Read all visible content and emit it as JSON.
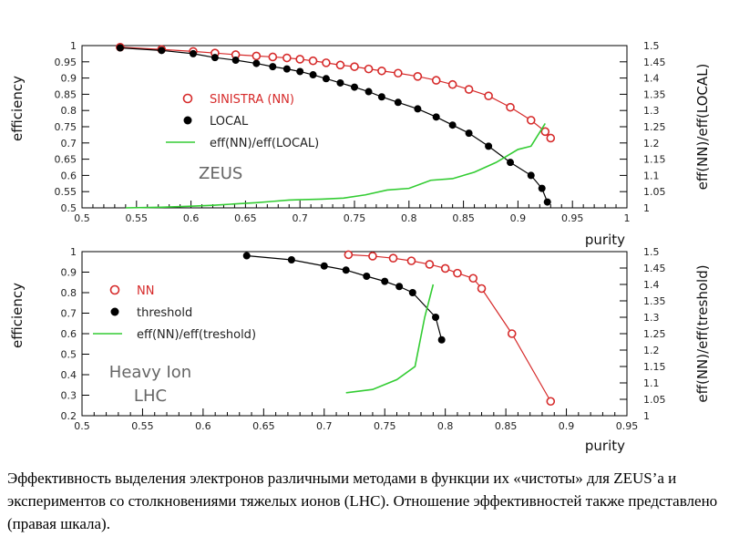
{
  "caption": "Эффективность выделения электронов различными методами в функции их «чистоты» для ZEUS’а и экспериментов со столкновениями тяжелых ионов (LHC). Отношение эффективностей также представлено (правая шкала).",
  "colors": {
    "red": "#d62a2a",
    "black": "#000000",
    "green": "#33cc33"
  },
  "chart_data": [
    {
      "type": "scatter",
      "annotation": "ZEUS",
      "xlabel": "purity",
      "ylabel": "efficiency",
      "y2label": "eff(NN)/eff(LOCAL)",
      "xlim": [
        0.5,
        1.0
      ],
      "ylim": [
        0.5,
        1.0
      ],
      "y2lim": [
        1.0,
        1.5
      ],
      "xticks": [
        "0.5",
        "0.55",
        "0.6",
        "0.65",
        "0.7",
        "0.75",
        "0.8",
        "0.85",
        "0.9",
        "0.95",
        "1"
      ],
      "yticks": [
        "0.5",
        "0.55",
        "0.6",
        "0.65",
        "0.7",
        "0.75",
        "0.8",
        "0.85",
        "0.9",
        "0.95",
        "1"
      ],
      "y2ticks": [
        "1",
        "1.05",
        "1.1",
        "1.15",
        "1.2",
        "1.25",
        "1.3",
        "1.35",
        "1.4",
        "1.45",
        "1.5"
      ],
      "legend_position": "center-left",
      "series": [
        {
          "name": "SINISTRA (NN)",
          "marker": "open-circle",
          "color": "red",
          "axis": "left",
          "x": [
            0.535,
            0.573,
            0.602,
            0.622,
            0.641,
            0.66,
            0.675,
            0.688,
            0.7,
            0.712,
            0.724,
            0.737,
            0.75,
            0.763,
            0.775,
            0.79,
            0.808,
            0.825,
            0.84,
            0.855,
            0.873,
            0.893,
            0.912,
            0.925,
            0.93
          ],
          "y": [
            0.995,
            0.988,
            0.982,
            0.977,
            0.972,
            0.968,
            0.965,
            0.962,
            0.958,
            0.953,
            0.947,
            0.94,
            0.935,
            0.928,
            0.922,
            0.915,
            0.905,
            0.893,
            0.88,
            0.865,
            0.845,
            0.81,
            0.77,
            0.735,
            0.715
          ]
        },
        {
          "name": "LOCAL",
          "marker": "filled-circle",
          "color": "black",
          "axis": "left",
          "x": [
            0.535,
            0.573,
            0.602,
            0.622,
            0.641,
            0.66,
            0.675,
            0.688,
            0.7,
            0.712,
            0.724,
            0.737,
            0.75,
            0.763,
            0.775,
            0.79,
            0.808,
            0.825,
            0.84,
            0.855,
            0.873,
            0.893,
            0.912,
            0.922,
            0.927
          ],
          "y": [
            0.993,
            0.985,
            0.975,
            0.963,
            0.955,
            0.945,
            0.935,
            0.928,
            0.92,
            0.91,
            0.898,
            0.885,
            0.872,
            0.858,
            0.842,
            0.825,
            0.805,
            0.78,
            0.755,
            0.73,
            0.69,
            0.64,
            0.6,
            0.56,
            0.518
          ]
        },
        {
          "name": "eff(NN)/eff(LOCAL)",
          "marker": "line",
          "color": "green",
          "axis": "right",
          "x": [
            0.54,
            0.573,
            0.6,
            0.62,
            0.64,
            0.66,
            0.675,
            0.69,
            0.7,
            0.72,
            0.74,
            0.76,
            0.78,
            0.8,
            0.82,
            0.84,
            0.86,
            0.88,
            0.9,
            0.912,
            0.925
          ],
          "y": [
            1.0,
            1.002,
            1.005,
            1.008,
            1.012,
            1.016,
            1.02,
            1.024,
            1.025,
            1.027,
            1.03,
            1.04,
            1.055,
            1.06,
            1.085,
            1.09,
            1.11,
            1.14,
            1.18,
            1.19,
            1.26
          ]
        }
      ]
    },
    {
      "type": "scatter",
      "annotation": [
        "Heavy Ion",
        "LHC"
      ],
      "xlabel": "purity",
      "ylabel": "efficiency",
      "y2label": "eff(NN)/eff(treshold)",
      "xlim": [
        0.5,
        0.95
      ],
      "ylim": [
        0.2,
        1.0
      ],
      "y2lim": [
        1.0,
        1.5
      ],
      "xticks": [
        "0.5",
        "0.55",
        "0.6",
        "0.65",
        "0.7",
        "0.75",
        "0.8",
        "0.85",
        "0.9",
        "0.95"
      ],
      "yticks": [
        "0.2",
        "0.3",
        "0.4",
        "0.5",
        "0.6",
        "0.7",
        "0.8",
        "0.9",
        "1"
      ],
      "y2ticks": [
        "1",
        "1.05",
        "1.1",
        "1.15",
        "1.2",
        "1.25",
        "1.3",
        "1.35",
        "1.4",
        "1.45",
        "1.5"
      ],
      "legend_position": "center-left",
      "series": [
        {
          "name": "NN",
          "marker": "open-circle",
          "color": "red",
          "axis": "left",
          "x": [
            0.72,
            0.74,
            0.757,
            0.772,
            0.787,
            0.8,
            0.81,
            0.823,
            0.83,
            0.855,
            0.887
          ],
          "y": [
            0.985,
            0.978,
            0.968,
            0.955,
            0.938,
            0.918,
            0.895,
            0.87,
            0.82,
            0.6,
            0.27
          ]
        },
        {
          "name": "threshold",
          "marker": "filled-circle",
          "color": "black",
          "axis": "left",
          "x": [
            0.636,
            0.673,
            0.7,
            0.718,
            0.735,
            0.75,
            0.762,
            0.773,
            0.792,
            0.797
          ],
          "y": [
            0.98,
            0.96,
            0.93,
            0.91,
            0.88,
            0.855,
            0.83,
            0.8,
            0.68,
            0.57
          ]
        },
        {
          "name": "eff(NN)/eff(treshold)",
          "marker": "line",
          "color": "green",
          "axis": "right",
          "x": [
            0.718,
            0.74,
            0.76,
            0.775,
            0.783,
            0.79
          ],
          "y": [
            1.07,
            1.08,
            1.11,
            1.15,
            1.3,
            1.4
          ]
        }
      ]
    }
  ]
}
